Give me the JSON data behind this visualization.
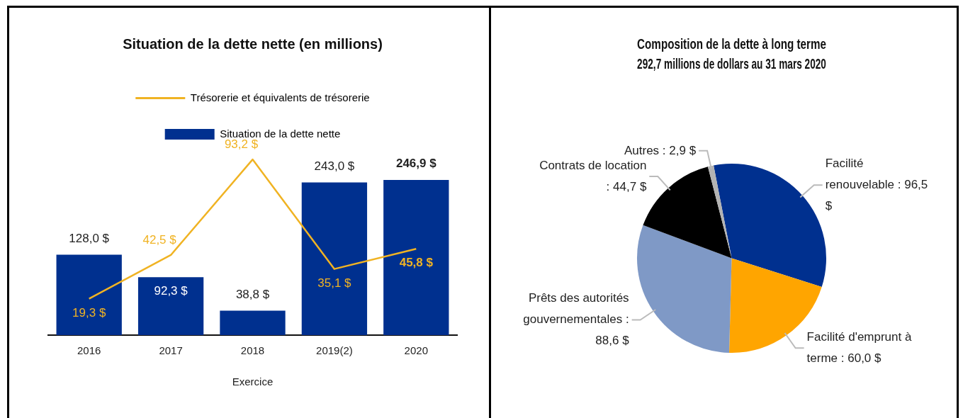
{
  "chart_data": [
    {
      "type": "bar",
      "title": "Situation de la dette nette (en millions)",
      "xlabel": "Exercice",
      "categories": [
        "2016",
        "2017",
        "2018",
        "2019(2)",
        "2020"
      ],
      "series": [
        {
          "name": "Trésorerie et équivalents de trésorerie",
          "type": "line",
          "axis": "y2",
          "color": "#f0b323",
          "values": [
            19.3,
            42.5,
            93.2,
            35.1,
            45.8
          ],
          "value_labels": [
            "19,3 $",
            "42,5 $",
            "93,2 $",
            "35,1 $",
            "45,8 $"
          ]
        },
        {
          "name": "Situation de la dette nette",
          "color": "#00308f",
          "values": [
            128.0,
            92.3,
            38.8,
            243.0,
            246.9
          ],
          "value_labels": [
            "128,0 $",
            "92,3 $",
            "38,8 $",
            "243,0 $",
            "246,9 $"
          ]
        }
      ],
      "tick_labels": "x",
      "legend": "top",
      "grid": false,
      "marker": "none"
    },
    {
      "type": "pie",
      "title": "Composition de la dette à long terme",
      "subtitle": "292,7 millions de dollars au 31 mars 2020",
      "categories": [
        "Facilité renouvelable : 96,5 $",
        "Facilité d'emprunt à terme : 60,0 $",
        "Prêts des autorités gouvernementales : 88,6 $",
        "Contrats de location : 44,7 $",
        "Autres : 2,9 $"
      ],
      "values": [
        96.5,
        60.0,
        88.6,
        44.7,
        2.9
      ],
      "colors": [
        "#00308f",
        "#ffa500",
        "#7f99c6",
        "#000000",
        "#b3b3b3"
      ],
      "legend": false
    }
  ]
}
